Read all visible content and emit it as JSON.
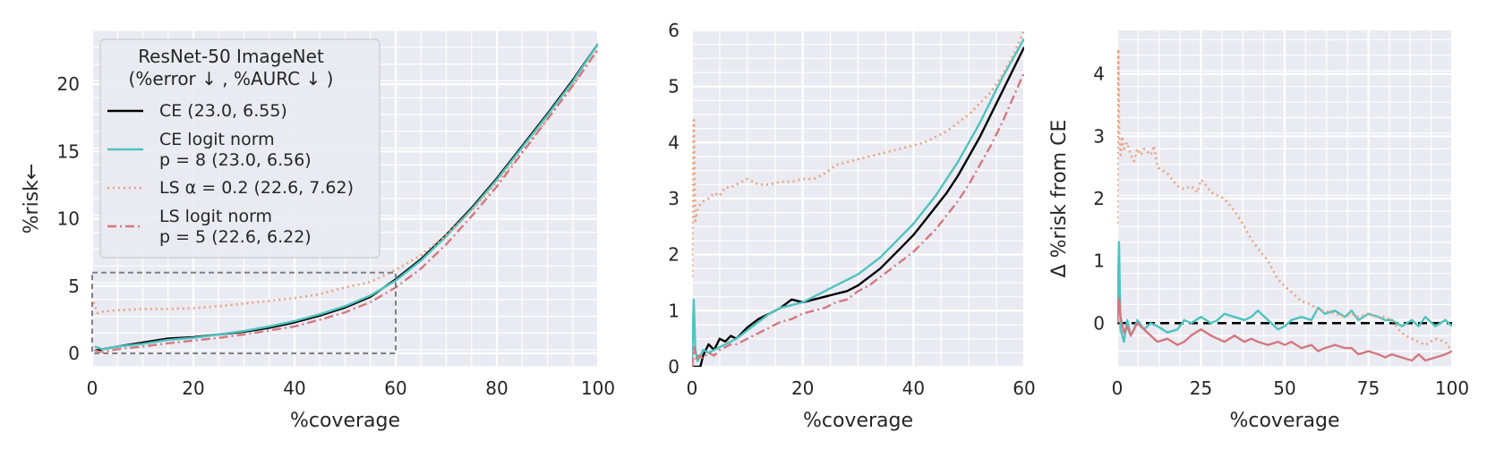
{
  "chart_data": [
    {
      "type": "line",
      "xlabel": "%coverage",
      "ylabel": "%risk←",
      "xlim": [
        0,
        100
      ],
      "ylim": [
        -1,
        24
      ],
      "xticks": [
        0,
        20,
        40,
        60,
        80,
        100
      ],
      "yticks": [
        0,
        5,
        10,
        15,
        20
      ],
      "grid": true,
      "legend": {
        "placement": "upper-left",
        "title_lines": [
          "ResNet-50 ImageNet",
          "(%error ↓ , %AURC ↓ )"
        ],
        "entries": [
          {
            "lines": [
              "CE (23.0, 6.55)"
            ]
          },
          {
            "lines": [
              "CE logit norm",
              "p = 8 (23.0, 6.56)"
            ]
          },
          {
            "lines": [
              "LS α = 0.2 (22.6, 7.62)"
            ]
          },
          {
            "lines": [
              "LS logit norm",
              "p = 5 (22.6, 6.22)"
            ]
          }
        ]
      },
      "inset_box": {
        "x": [
          0,
          60
        ],
        "y": [
          0,
          6
        ]
      },
      "series": [
        {
          "color": "#000000",
          "dash": "solid",
          "x": [
            0.5,
            2,
            5,
            10,
            15,
            20,
            25,
            30,
            35,
            40,
            45,
            50,
            55,
            60,
            65,
            70,
            75,
            80,
            85,
            90,
            95,
            100
          ],
          "y": [
            0.2,
            0.3,
            0.5,
            0.8,
            1.1,
            1.2,
            1.4,
            1.6,
            1.9,
            2.3,
            2.8,
            3.4,
            4.2,
            5.5,
            7.0,
            8.8,
            10.8,
            13.0,
            15.4,
            17.8,
            20.3,
            23.0
          ]
        },
        {
          "color": "#4ec3bf",
          "dash": "solid",
          "x": [
            0.5,
            2,
            5,
            10,
            15,
            20,
            25,
            30,
            35,
            40,
            45,
            50,
            55,
            60,
            65,
            70,
            75,
            80,
            85,
            90,
            95,
            100
          ],
          "y": [
            0.5,
            0.3,
            0.5,
            0.7,
            1.0,
            1.15,
            1.4,
            1.65,
            2.0,
            2.4,
            2.9,
            3.5,
            4.3,
            5.4,
            6.9,
            8.7,
            10.7,
            12.9,
            15.3,
            17.7,
            20.2,
            23.0
          ]
        },
        {
          "color": "#e8a37e",
          "dash": "dotted",
          "x": [
            0.3,
            1,
            2,
            5,
            10,
            15,
            20,
            25,
            30,
            35,
            40,
            45,
            50,
            55,
            60,
            65,
            70,
            75,
            80,
            85,
            90,
            95,
            100
          ],
          "y": [
            3.8,
            3.0,
            3.1,
            3.2,
            3.3,
            3.3,
            3.35,
            3.5,
            3.7,
            3.9,
            4.1,
            4.4,
            4.9,
            5.3,
            6.2,
            7.3,
            8.8,
            10.6,
            12.7,
            15.0,
            17.4,
            19.9,
            22.6
          ]
        },
        {
          "color": "#d3787e",
          "dash": "dashdot",
          "x": [
            0.5,
            2,
            5,
            10,
            15,
            20,
            25,
            30,
            35,
            40,
            45,
            50,
            55,
            60,
            65,
            70,
            75,
            80,
            85,
            90,
            95,
            100
          ],
          "y": [
            0.2,
            0.1,
            0.3,
            0.5,
            0.75,
            0.95,
            1.15,
            1.4,
            1.7,
            2.0,
            2.5,
            3.05,
            3.8,
            4.9,
            6.3,
            8.1,
            10.2,
            12.4,
            14.9,
            17.4,
            19.9,
            22.6
          ]
        }
      ]
    },
    {
      "type": "line",
      "xlabel": "%coverage",
      "ylabel": "",
      "xlim": [
        0,
        60
      ],
      "ylim": [
        0,
        6
      ],
      "xticks": [
        0,
        20,
        40,
        60
      ],
      "yticks": [
        0,
        1,
        2,
        3,
        4,
        5,
        6
      ],
      "grid": true,
      "series": [
        {
          "color": "#000000",
          "dash": "solid",
          "x": [
            0,
            0.5,
            1,
            1.5,
            2,
            3,
            4,
            5,
            6,
            7,
            8,
            10,
            12,
            14,
            16,
            18,
            20,
            22,
            24,
            26,
            28,
            30,
            32,
            34,
            36,
            38,
            40,
            42,
            44,
            46,
            48,
            50,
            52,
            54,
            56,
            58,
            60
          ],
          "y": [
            0,
            0,
            0,
            0,
            0.2,
            0.4,
            0.3,
            0.5,
            0.45,
            0.55,
            0.5,
            0.7,
            0.85,
            0.95,
            1.05,
            1.2,
            1.15,
            1.2,
            1.25,
            1.3,
            1.35,
            1.45,
            1.6,
            1.75,
            1.95,
            2.15,
            2.35,
            2.6,
            2.85,
            3.1,
            3.4,
            3.75,
            4.1,
            4.5,
            4.9,
            5.3,
            5.7
          ]
        },
        {
          "color": "#4ec3bf",
          "dash": "solid",
          "x": [
            0,
            0.3,
            0.6,
            1,
            1.5,
            2,
            3,
            4,
            5,
            6,
            7,
            8,
            10,
            12,
            14,
            16,
            18,
            20,
            22,
            24,
            26,
            28,
            30,
            32,
            34,
            36,
            38,
            40,
            42,
            44,
            46,
            48,
            50,
            52,
            54,
            56,
            58,
            60
          ],
          "y": [
            0,
            1.2,
            0.3,
            0.1,
            0.2,
            0.3,
            0.25,
            0.3,
            0.35,
            0.4,
            0.45,
            0.5,
            0.65,
            0.8,
            0.95,
            1.05,
            1.1,
            1.15,
            1.25,
            1.35,
            1.45,
            1.55,
            1.65,
            1.8,
            1.95,
            2.15,
            2.35,
            2.55,
            2.8,
            3.05,
            3.35,
            3.65,
            4.0,
            4.35,
            4.75,
            5.15,
            5.5,
            5.85
          ]
        },
        {
          "color": "#e8a37e",
          "dash": "dotted",
          "x": [
            0,
            0.3,
            0.6,
            1,
            1.5,
            2,
            3,
            4,
            5,
            6,
            7,
            8,
            9,
            10,
            12,
            14,
            16,
            18,
            20,
            22,
            24,
            26,
            28,
            30,
            32,
            34,
            36,
            38,
            40,
            42,
            44,
            46,
            48,
            50,
            52,
            54,
            56,
            58,
            60
          ],
          "y": [
            1.6,
            4.4,
            2.6,
            2.8,
            2.9,
            2.95,
            3.0,
            3.1,
            3.05,
            3.2,
            3.2,
            3.25,
            3.3,
            3.35,
            3.25,
            3.25,
            3.3,
            3.3,
            3.35,
            3.35,
            3.45,
            3.6,
            3.65,
            3.7,
            3.75,
            3.8,
            3.85,
            3.9,
            3.95,
            4.0,
            4.1,
            4.2,
            4.35,
            4.5,
            4.7,
            4.9,
            5.2,
            5.55,
            6.0
          ]
        },
        {
          "color": "#d3787e",
          "dash": "dashdot",
          "x": [
            0,
            0.4,
            0.8,
            1.2,
            2,
            3,
            4,
            5,
            6,
            7,
            8,
            10,
            12,
            14,
            16,
            18,
            20,
            22,
            24,
            26,
            28,
            30,
            32,
            34,
            36,
            38,
            40,
            42,
            44,
            46,
            48,
            50,
            52,
            54,
            56,
            58,
            60
          ],
          "y": [
            0,
            0.35,
            0.1,
            0.2,
            0.15,
            0.25,
            0.2,
            0.3,
            0.35,
            0.4,
            0.4,
            0.5,
            0.6,
            0.7,
            0.8,
            0.85,
            0.95,
            1.0,
            1.05,
            1.15,
            1.2,
            1.35,
            1.45,
            1.6,
            1.75,
            1.9,
            2.05,
            2.25,
            2.45,
            2.7,
            2.95,
            3.25,
            3.6,
            3.95,
            4.35,
            4.8,
            5.25
          ]
        }
      ]
    },
    {
      "type": "line",
      "xlabel": "%coverage",
      "ylabel": "Δ %risk from CE",
      "xlim": [
        0,
        100
      ],
      "ylim": [
        -0.7,
        4.7
      ],
      "xticks": [
        0,
        25,
        50,
        75,
        100
      ],
      "yticks": [
        0,
        1,
        2,
        3,
        4
      ],
      "grid": true,
      "zero_line": 0,
      "series": [
        {
          "color": "#4ec3bf",
          "dash": "solid",
          "x": [
            0,
            0.5,
            1,
            2,
            3,
            4,
            5,
            6,
            8,
            10,
            12,
            15,
            18,
            20,
            22,
            25,
            28,
            30,
            32,
            35,
            38,
            40,
            42,
            45,
            48,
            50,
            52,
            55,
            58,
            60,
            62,
            65,
            68,
            70,
            72,
            75,
            78,
            80,
            82,
            85,
            88,
            90,
            92,
            95,
            98,
            100
          ],
          "y": [
            0,
            1.3,
            -0.1,
            -0.3,
            0.05,
            -0.2,
            -0.1,
            0.05,
            -0.1,
            0,
            -0.05,
            -0.15,
            -0.1,
            0.05,
            0,
            0.1,
            0,
            0.05,
            0.15,
            0.1,
            0.05,
            0.1,
            0.2,
            0.05,
            -0.1,
            -0.05,
            0.05,
            0.1,
            0.05,
            0.25,
            0.15,
            0.2,
            0.1,
            0.2,
            0.05,
            0.15,
            0.1,
            0.05,
            0.05,
            -0.05,
            0.05,
            -0.05,
            0.1,
            -0.05,
            0.05,
            -0.05
          ]
        },
        {
          "color": "#e8a37e",
          "dash": "dotted",
          "x": [
            0,
            0.3,
            0.6,
            1,
            1.5,
            2,
            3,
            4,
            5,
            6,
            7,
            8,
            10,
            11,
            12,
            15,
            18,
            20,
            22,
            24,
            25,
            26,
            28,
            30,
            32,
            35,
            38,
            40,
            42,
            45,
            48,
            50,
            52,
            55,
            58,
            60,
            62,
            65,
            68,
            70,
            72,
            75,
            78,
            80,
            82,
            84,
            86,
            88,
            90,
            92,
            95,
            98,
            100
          ],
          "y": [
            1.6,
            4.4,
            3.0,
            2.7,
            3.0,
            2.8,
            2.9,
            2.7,
            2.6,
            2.8,
            2.7,
            2.8,
            2.7,
            2.85,
            2.5,
            2.4,
            2.2,
            2.15,
            2.2,
            2.1,
            2.3,
            2.25,
            2.1,
            2.05,
            2.0,
            1.8,
            1.55,
            1.35,
            1.2,
            1.0,
            0.7,
            0.6,
            0.5,
            0.35,
            0.3,
            0.2,
            0.2,
            0.15,
            0.1,
            0.15,
            0.1,
            0.15,
            0.1,
            0.1,
            0.05,
            -0.1,
            -0.2,
            -0.25,
            -0.3,
            -0.35,
            -0.25,
            -0.3,
            -0.45
          ]
        },
        {
          "color": "#d3787e",
          "dash": "solid",
          "x": [
            0,
            0.5,
            1,
            2,
            3,
            4,
            5,
            6,
            8,
            10,
            12,
            15,
            18,
            20,
            22,
            25,
            28,
            30,
            32,
            35,
            38,
            40,
            42,
            45,
            48,
            50,
            52,
            55,
            58,
            60,
            62,
            65,
            68,
            70,
            72,
            75,
            78,
            80,
            82,
            85,
            88,
            90,
            92,
            95,
            98,
            100
          ],
          "y": [
            0,
            0.4,
            0.1,
            -0.15,
            -0.05,
            -0.2,
            -0.1,
            0,
            -0.1,
            -0.2,
            -0.3,
            -0.25,
            -0.35,
            -0.3,
            -0.2,
            -0.1,
            -0.2,
            -0.25,
            -0.3,
            -0.2,
            -0.3,
            -0.25,
            -0.3,
            -0.35,
            -0.3,
            -0.35,
            -0.3,
            -0.4,
            -0.35,
            -0.45,
            -0.4,
            -0.35,
            -0.4,
            -0.4,
            -0.5,
            -0.45,
            -0.5,
            -0.55,
            -0.5,
            -0.55,
            -0.6,
            -0.5,
            -0.6,
            -0.55,
            -0.5,
            -0.45
          ]
        }
      ]
    }
  ]
}
